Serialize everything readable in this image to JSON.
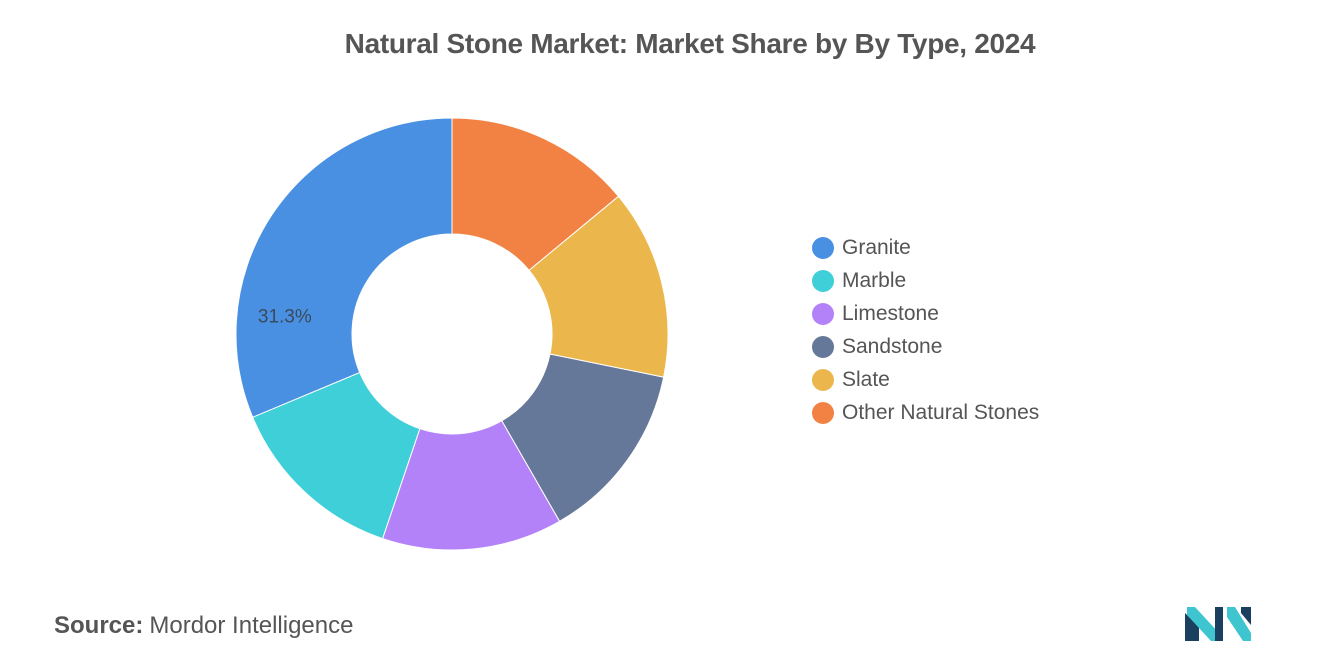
{
  "chart_data": {
    "type": "pie",
    "title": "Natural Stone Market: Market Share by By Type, 2024",
    "donut": true,
    "series": [
      {
        "name": "Granite",
        "value": 31.3,
        "color": "#4a90e2"
      },
      {
        "name": "Marble",
        "value": 13.5,
        "color": "#3fcfd9"
      },
      {
        "name": "Limestone",
        "value": 13.5,
        "color": "#b482f8"
      },
      {
        "name": "Sandstone",
        "value": 13.5,
        "color": "#667899"
      },
      {
        "name": "Slate",
        "value": 14.2,
        "color": "#ebb74c"
      },
      {
        "name": "Other Natural Stones",
        "value": 14.0,
        "color": "#f28243"
      }
    ],
    "data_labels": [
      {
        "series": "Granite",
        "text": "31.3%"
      }
    ],
    "legend_position": "right"
  },
  "footer": {
    "source_label": "Source:",
    "source_value": "Mordor Intelligence"
  },
  "logo": {
    "icon": "mordor-intelligence-logo-icon",
    "colors": [
      "#1b3f5e",
      "#3ec5d0"
    ]
  }
}
